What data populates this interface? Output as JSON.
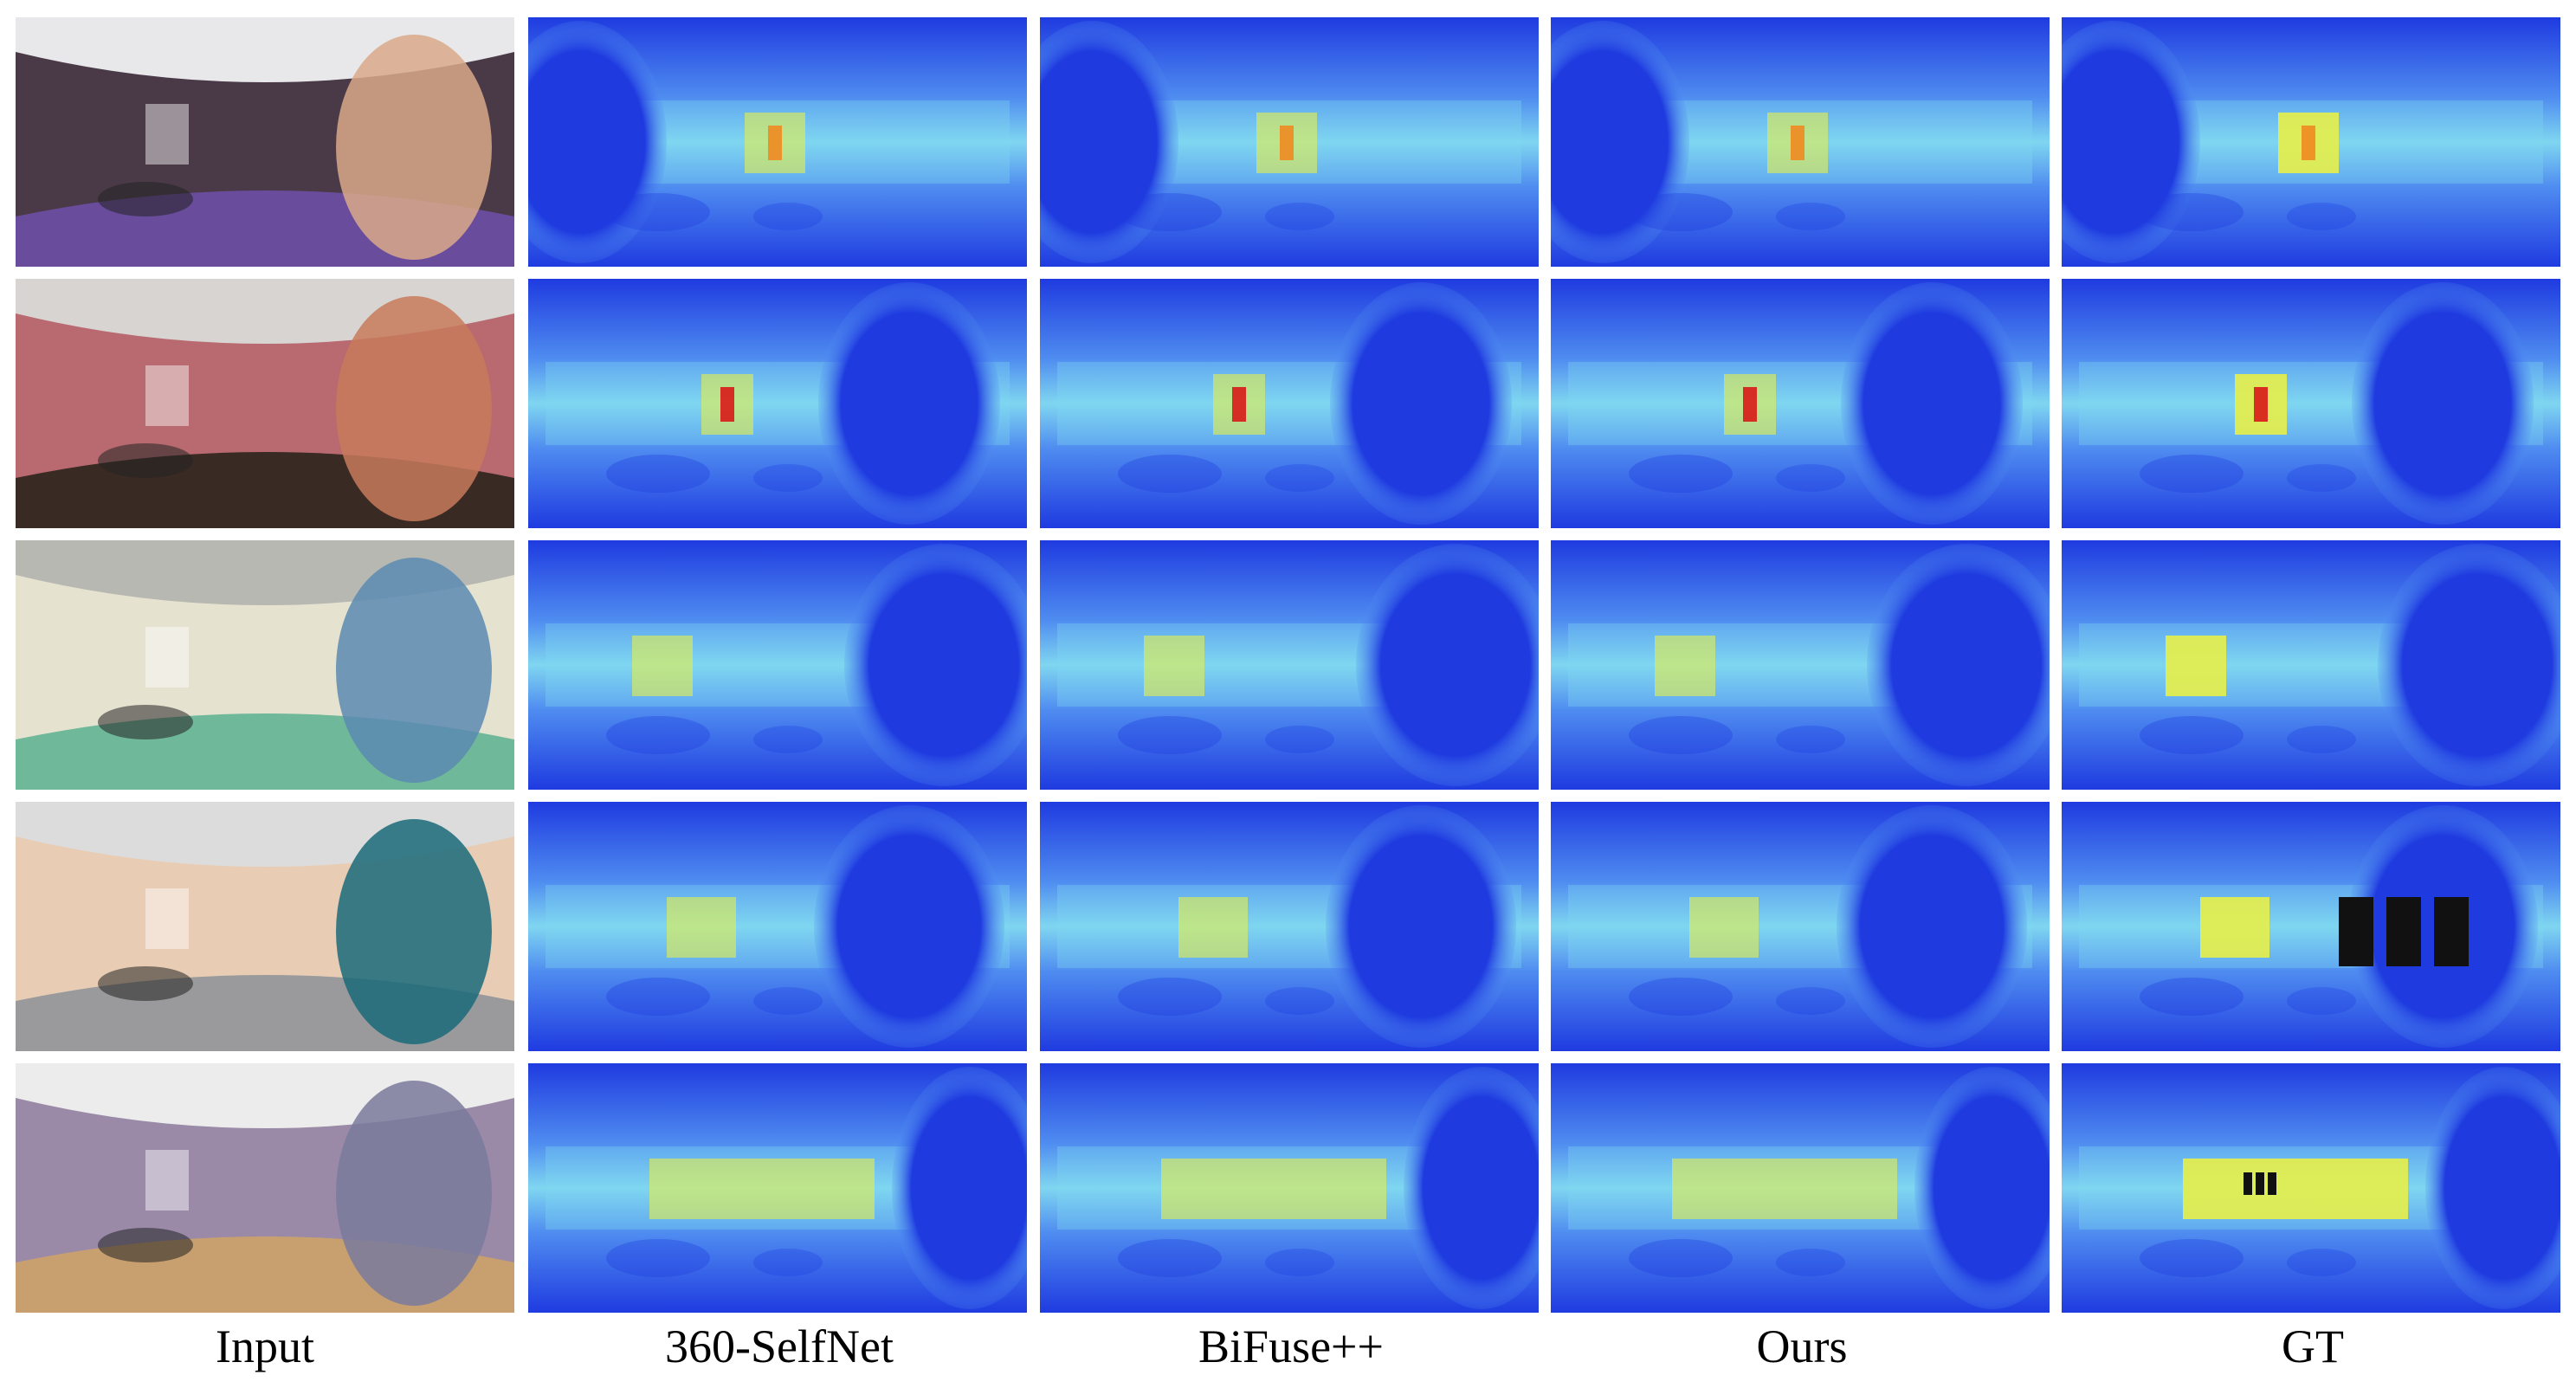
{
  "figure": {
    "columns": [
      {
        "id": "input",
        "label": "Input"
      },
      {
        "id": "selfnet",
        "label": "360-SelfNet"
      },
      {
        "id": "bifuse",
        "label": "BiFuse++"
      },
      {
        "id": "ours",
        "label": "Ours"
      },
      {
        "id": "gt",
        "label": "GT"
      }
    ],
    "rows": [
      {
        "id": "scene-1",
        "input_palette": {
          "wall": "#4a3a48",
          "floor": "#6a4c9c",
          "ceiling": "#e8e8ea",
          "accent": "#d9a98a"
        }
      },
      {
        "id": "scene-2",
        "input_palette": {
          "wall": "#b86a70",
          "floor": "#3a2a24",
          "ceiling": "#d8d4d2",
          "accent": "#c87a5a"
        }
      },
      {
        "id": "scene-3",
        "input_palette": {
          "wall": "#e6e2d0",
          "floor": "#6fb89a",
          "ceiling": "#b8b8b2",
          "accent": "#5a8ab0"
        }
      },
      {
        "id": "scene-4",
        "input_palette": {
          "wall": "#e8cdb4",
          "floor": "#9a9a9c",
          "ceiling": "#dcdcdc",
          "accent": "#1a6a7a"
        }
      },
      {
        "id": "scene-5",
        "input_palette": {
          "wall": "#9a8aa8",
          "floor": "#c8a070",
          "ceiling": "#ececec",
          "accent": "#7a7a9c"
        }
      }
    ],
    "depth_colors": {
      "far": "#1f3be0",
      "mid": "#4f8cf0",
      "near": "#7fd6f0",
      "hot": "#e8f048",
      "hotter": "#f08a20",
      "hottest": "#d81818"
    }
  }
}
